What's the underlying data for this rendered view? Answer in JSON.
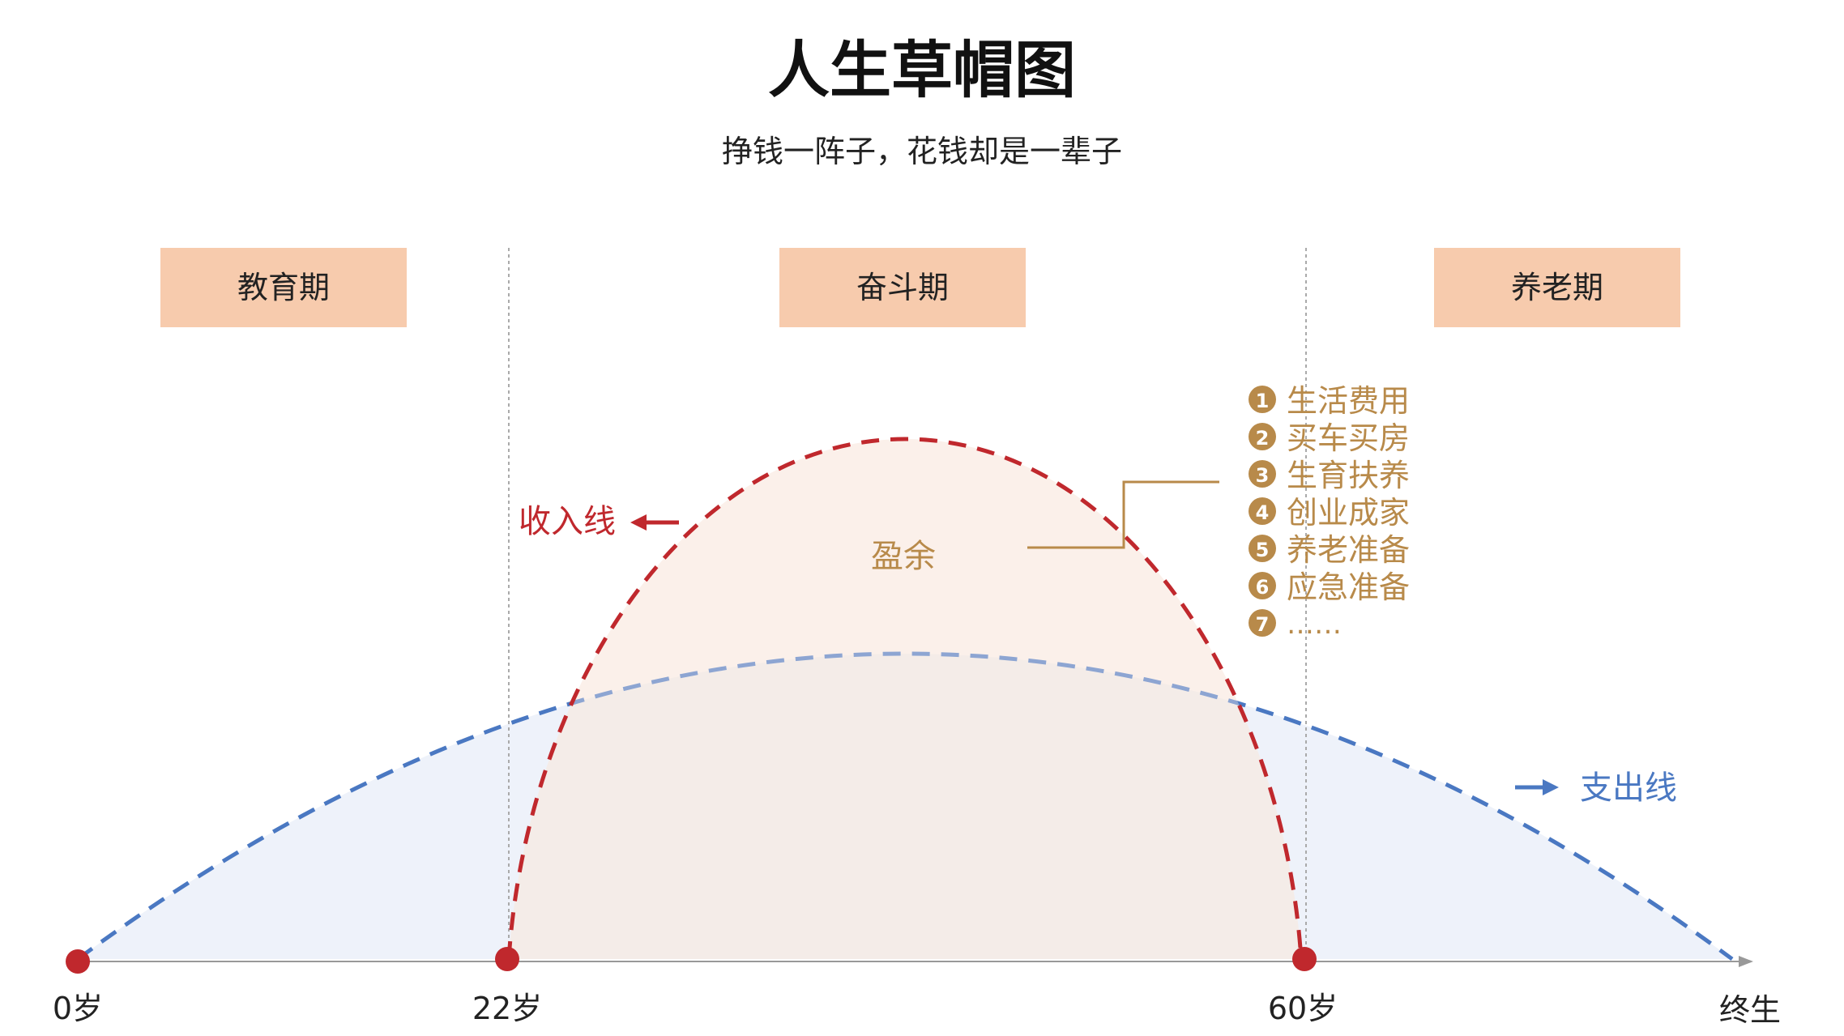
{
  "title": "人生草帽图",
  "subtitle": "挣钱一阵子，花钱却是一辈子",
  "phases": [
    {
      "label": "教育期"
    },
    {
      "label": "奋斗期"
    },
    {
      "label": "养老期"
    }
  ],
  "timeline": [
    {
      "label": "0岁"
    },
    {
      "label": "22岁"
    },
    {
      "label": "60岁"
    },
    {
      "label": "终生"
    }
  ],
  "income_line_label": "收入线",
  "expense_line_label": "支出线",
  "surplus_label": "盈余",
  "surplus_uses": [
    {
      "num": "1",
      "text": "生活费用"
    },
    {
      "num": "2",
      "text": "买车买房"
    },
    {
      "num": "3",
      "text": "生育扶养"
    },
    {
      "num": "4",
      "text": "创业成家"
    },
    {
      "num": "5",
      "text": "养老准备"
    },
    {
      "num": "6",
      "text": "应急准备"
    },
    {
      "num": "7",
      "text": "……"
    }
  ],
  "colors": {
    "income": "#c0282d",
    "expense": "#4a78c2",
    "gold": "#b88a4a",
    "phase_box": "#f7cbad",
    "income_fill": "#fbf0ea",
    "expense_fill": "#eef2fa",
    "overlap_fill": "#f4ece8",
    "axis": "#999999",
    "divider": "#aaaaaa"
  }
}
